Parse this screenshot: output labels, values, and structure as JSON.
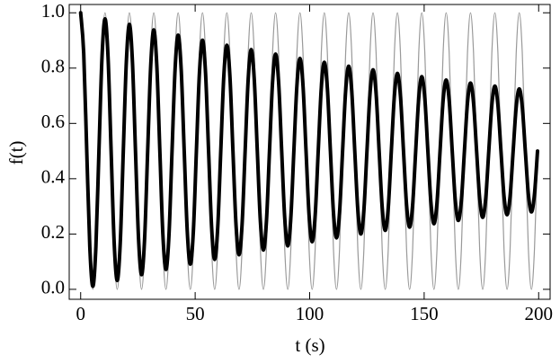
{
  "chart_data": {
    "type": "line",
    "xlabel": "t (s)",
    "ylabel": "f(t)",
    "xlim": [
      -5,
      205
    ],
    "ylim": [
      -0.036,
      1.03
    ],
    "xticks": [
      0,
      50,
      100,
      150,
      200
    ],
    "yticks": [
      {
        "value": 0,
        "label": "0.0"
      },
      0.2,
      0.4,
      0.6,
      0.8,
      {
        "value": 1,
        "label": "1.0"
      }
    ],
    "x": [
      0,
      1.33,
      2.66,
      3.99,
      5.32,
      6.65,
      7.98,
      9.31,
      10.64,
      11.97,
      13.3,
      14.63,
      15.96,
      17.29,
      18.62,
      19.95,
      21.28,
      22.61,
      23.94,
      25.27,
      26.6,
      27.93,
      29.26,
      30.59,
      31.92,
      33.25,
      34.58,
      35.91,
      37.24,
      38.57,
      39.9,
      41.23,
      42.56,
      43.89,
      45.22,
      46.55,
      47.88,
      49.21,
      50.54,
      51.87,
      53.2,
      54.53,
      55.86,
      57.19,
      58.52,
      59.85,
      61.18,
      62.51,
      63.84,
      65.17,
      66.5,
      67.83,
      69.16,
      70.49,
      71.82,
      73.15,
      74.48,
      75.81,
      77.14,
      78.47,
      79.8,
      81.13,
      82.46,
      83.79,
      85.12,
      86.45,
      87.78,
      89.11,
      90.44,
      91.77,
      93.1,
      94.43,
      95.76,
      97.09,
      98.42,
      99.75,
      101.08,
      102.41,
      103.74,
      105.07,
      106.4,
      107.73,
      109.06,
      110.39,
      111.72,
      113.05,
      114.38,
      115.71,
      117.04,
      118.37,
      119.7,
      121.03,
      122.36,
      123.69,
      125.02,
      126.35,
      127.68,
      129.01,
      130.34,
      131.67,
      133,
      134.33,
      135.66,
      136.99,
      138.32,
      139.65,
      140.98,
      142.31,
      143.64,
      144.97,
      146.3,
      147.63,
      148.96,
      150.29,
      151.62,
      152.95,
      154.28,
      155.61,
      156.94,
      158.27,
      159.6,
      160.93,
      162.26,
      163.59,
      164.92,
      166.25,
      167.58,
      168.91,
      170.24,
      171.57,
      172.9,
      174.23,
      175.56,
      176.89,
      178.22,
      179.55,
      180.88,
      182.21,
      183.54,
      184.87,
      186.2,
      187.53,
      188.86,
      190.19,
      191.52,
      192.85,
      194.18,
      195.51,
      196.84,
      198.17,
      199.5
    ],
    "series": [
      {
        "color": "#999999",
        "line_width": 1.2,
        "values": [
          1,
          0.854,
          0.5,
          0.146,
          0,
          0.146,
          0.5,
          0.854,
          1,
          0.854,
          0.5,
          0.146,
          0,
          0.146,
          0.5,
          0.854,
          1,
          0.854,
          0.5,
          0.146,
          0,
          0.146,
          0.5,
          0.854,
          1,
          0.854,
          0.5,
          0.146,
          0,
          0.146,
          0.5,
          0.854,
          1,
          0.854,
          0.5,
          0.146,
          0,
          0.146,
          0.5,
          0.854,
          1,
          0.854,
          0.5,
          0.146,
          0,
          0.146,
          0.5,
          0.854,
          1,
          0.854,
          0.5,
          0.146,
          0,
          0.146,
          0.5,
          0.854,
          1,
          0.854,
          0.5,
          0.146,
          0,
          0.146,
          0.5,
          0.854,
          1,
          0.854,
          0.5,
          0.146,
          0,
          0.146,
          0.5,
          0.854,
          1,
          0.854,
          0.5,
          0.146,
          0,
          0.146,
          0.5,
          0.854,
          1,
          0.854,
          0.5,
          0.146,
          0,
          0.146,
          0.5,
          0.854,
          1,
          0.854,
          0.5,
          0.146,
          0,
          0.146,
          0.5,
          0.854,
          1,
          0.854,
          0.5,
          0.146,
          0,
          0.146,
          0.5,
          0.854,
          1,
          0.854,
          0.5,
          0.146,
          0,
          0.146,
          0.5,
          0.854,
          1,
          0.854,
          0.5,
          0.146,
          0,
          0.146,
          0.5,
          0.854,
          1,
          0.854,
          0.5,
          0.146,
          0,
          0.146,
          0.5,
          0.854,
          1,
          0.854,
          0.5,
          0.146,
          0,
          0.146,
          0.5,
          0.854,
          1,
          0.854,
          0.5,
          0.146,
          0,
          0.146,
          0.5,
          0.854,
          1,
          0.854,
          0.5,
          0.146,
          0,
          0.146,
          0.5
        ]
      },
      {
        "color": "#000000",
        "line_width": 4,
        "values": [
          1,
          0.854,
          0.5,
          0.154,
          0.011,
          0.154,
          0.5,
          0.838,
          0.978,
          0.838,
          0.5,
          0.169,
          0.032,
          0.169,
          0.5,
          0.823,
          0.958,
          0.823,
          0.5,
          0.184,
          0.053,
          0.184,
          0.5,
          0.809,
          0.938,
          0.809,
          0.5,
          0.197,
          0.072,
          0.197,
          0.5,
          0.796,
          0.919,
          0.796,
          0.5,
          0.21,
          0.091,
          0.21,
          0.5,
          0.783,
          0.901,
          0.783,
          0.5,
          0.223,
          0.108,
          0.223,
          0.5,
          0.771,
          0.883,
          0.771,
          0.5,
          0.235,
          0.125,
          0.235,
          0.5,
          0.759,
          0.867,
          0.759,
          0.5,
          0.247,
          0.142,
          0.247,
          0.5,
          0.748,
          0.851,
          0.748,
          0.5,
          0.258,
          0.157,
          0.258,
          0.5,
          0.737,
          0.835,
          0.737,
          0.5,
          0.268,
          0.172,
          0.268,
          0.5,
          0.727,
          0.821,
          0.727,
          0.5,
          0.278,
          0.186,
          0.278,
          0.5,
          0.717,
          0.807,
          0.717,
          0.5,
          0.288,
          0.2,
          0.288,
          0.5,
          0.708,
          0.794,
          0.708,
          0.5,
          0.297,
          0.213,
          0.297,
          0.5,
          0.699,
          0.781,
          0.699,
          0.5,
          0.306,
          0.225,
          0.306,
          0.5,
          0.69,
          0.769,
          0.69,
          0.5,
          0.314,
          0.237,
          0.314,
          0.5,
          0.682,
          0.757,
          0.682,
          0.5,
          0.322,
          0.249,
          0.322,
          0.5,
          0.674,
          0.746,
          0.674,
          0.5,
          0.33,
          0.26,
          0.33,
          0.5,
          0.666,
          0.735,
          0.666,
          0.5,
          0.337,
          0.27,
          0.337,
          0.5,
          0.659,
          0.725,
          0.659,
          0.5,
          0.344,
          0.28,
          0.344,
          0.5
        ]
      }
    ]
  }
}
